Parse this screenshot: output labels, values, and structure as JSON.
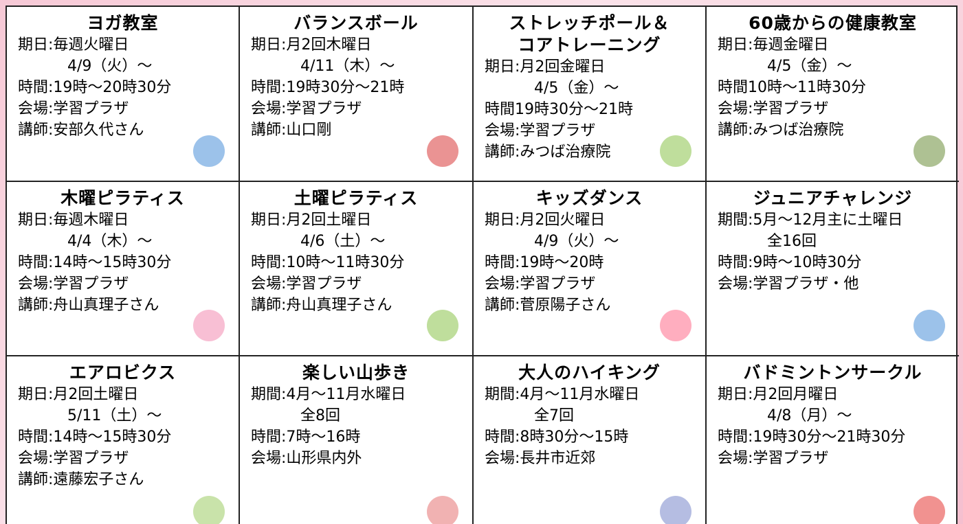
{
  "cells": [
    {
      "title": [
        "ヨガ教室"
      ],
      "items": [
        {
          "text": "期日:毎週火曜日",
          "cont": [
            "4/9（火）～"
          ]
        },
        {
          "text": "時間:19時～20時30分"
        },
        {
          "text": "会場:学習プラザ"
        },
        {
          "text": "講師:安部久代さん"
        }
      ]
    },
    {
      "title": [
        "バランスボール"
      ],
      "items": [
        {
          "text": "期日:月2回木曜日",
          "cont": [
            "4/11（木）～"
          ]
        },
        {
          "text": "時間:19時30分～21時"
        },
        {
          "text": "会場:学習プラザ"
        },
        {
          "text": "講師:山口剛"
        }
      ]
    },
    {
      "title": [
        "ストレッチポール＆",
        "コアトレーニング"
      ],
      "items": [
        {
          "text": "期日:月2回金曜日",
          "cont": [
            "4/5（金）～"
          ]
        },
        {
          "text": "時間19時30分～21時"
        },
        {
          "text": "会場:学習プラザ"
        },
        {
          "text": "講師:みつば治療院"
        }
      ]
    },
    {
      "title": [
        "60歳からの健康教室"
      ],
      "items": [
        {
          "text": "期日:毎週金曜日",
          "cont": [
            "4/5（金）～"
          ]
        },
        {
          "text": "時間10時～11時30分"
        },
        {
          "text": "会場:学習プラザ"
        },
        {
          "text": "講師:みつば治療院"
        }
      ]
    },
    {
      "title": [
        "木曜ピラティス"
      ],
      "items": [
        {
          "text": "期日:毎週木曜日",
          "cont": [
            "4/4（木）～"
          ]
        },
        {
          "text": "時間:14時～15時30分"
        },
        {
          "text": "会場:学習プラザ"
        },
        {
          "text": "講師:舟山真理子さん"
        }
      ]
    },
    {
      "title": [
        "土曜ピラティス"
      ],
      "items": [
        {
          "text": "期日:月2回土曜日",
          "cont": [
            "4/6（土）～"
          ]
        },
        {
          "text": "時間:10時～11時30分"
        },
        {
          "text": "会場:学習プラザ"
        },
        {
          "text": "講師:舟山真理子さん"
        }
      ]
    },
    {
      "title": [
        "キッズダンス"
      ],
      "items": [
        {
          "text": "期日:月2回火曜日",
          "cont": [
            "4/9（火）～"
          ]
        },
        {
          "text": "時間:19時～20時"
        },
        {
          "text": "会場:学習プラザ"
        },
        {
          "text": "講師:菅原陽子さん"
        }
      ]
    },
    {
      "title": [
        "ジュニアチャレンジ"
      ],
      "items": [
        {
          "text": "期間:5月～12月主に土曜日",
          "cont": [
            "全16回"
          ]
        },
        {
          "text": "時間:9時～10時30分"
        },
        {
          "text": "会場:学習プラザ・他"
        }
      ]
    },
    {
      "title": [
        "エアロビクス"
      ],
      "items": [
        {
          "text": "期日:月2回土曜日",
          "cont": [
            "5/11（土）～"
          ]
        },
        {
          "text": "時間:14時～15時30分"
        },
        {
          "text": "会場:学習プラザ"
        },
        {
          "text": "講師:遠藤宏子さん"
        }
      ]
    },
    {
      "title": [
        "楽しい山歩き"
      ],
      "items": [
        {
          "text": "期間:4月～11月水曜日",
          "cont": [
            "全8回"
          ]
        },
        {
          "text": "時間:7時～16時"
        },
        {
          "text": "会場:山形県内外"
        }
      ]
    },
    {
      "title": [
        "大人のハイキング"
      ],
      "items": [
        {
          "text": "期間:4月～11月水曜日",
          "cont": [
            "全7回"
          ]
        },
        {
          "text": "時間:8時30分～15時"
        },
        {
          "text": "会場:長井市近郊"
        }
      ]
    },
    {
      "title": [
        "バドミントンサークル"
      ],
      "items": [
        {
          "text": "期日:月2回月曜日",
          "cont": [
            "4/8（月）～"
          ]
        },
        {
          "text": "時間:19時30分～21時30分"
        },
        {
          "text": "会場:学習プラザ"
        }
      ]
    }
  ]
}
